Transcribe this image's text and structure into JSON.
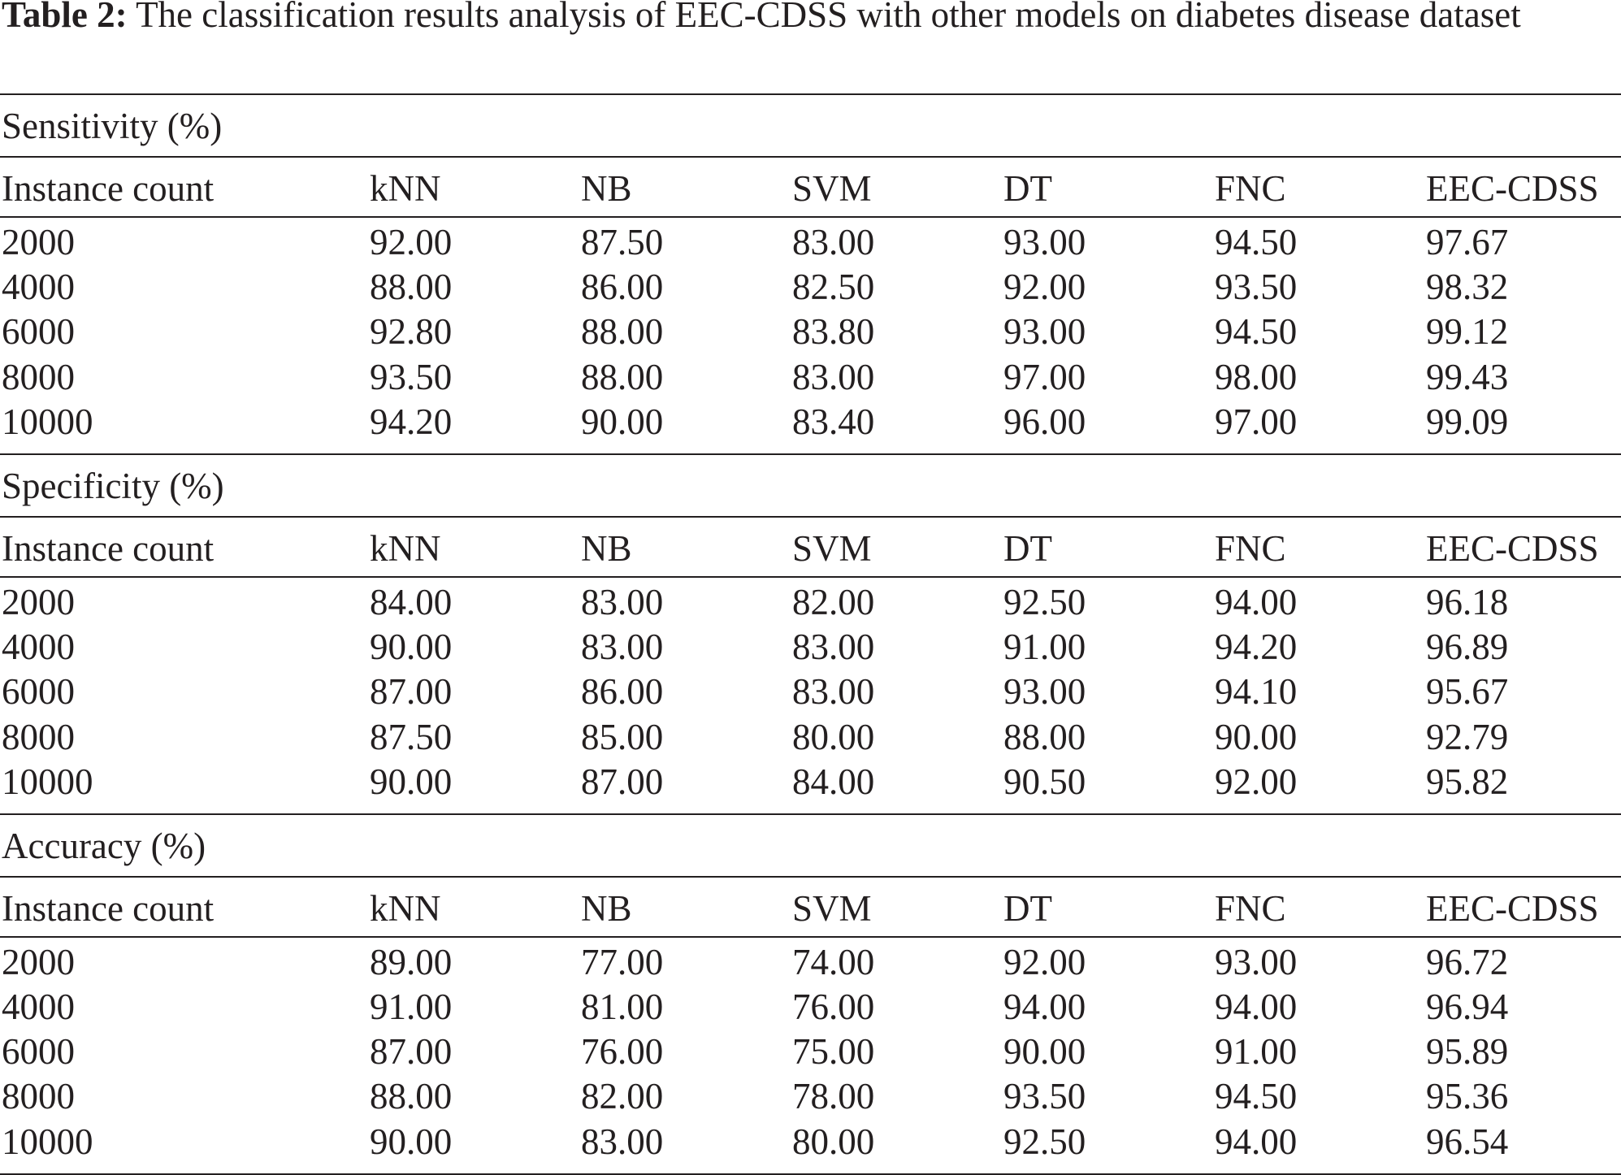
{
  "caption": {
    "label": "Table 2:",
    "text": "The classification results analysis of EEC-CDSS with other models on diabetes disease dataset"
  },
  "columns": [
    "Instance count",
    "kNN",
    "NB",
    "SVM",
    "DT",
    "FNC",
    "EEC-CDSS"
  ],
  "sections": [
    {
      "title": "Sensitivity (%)",
      "rows": [
        [
          "2000",
          "92.00",
          "87.50",
          "83.00",
          "93.00",
          "94.50",
          "97.67"
        ],
        [
          "4000",
          "88.00",
          "86.00",
          "82.50",
          "92.00",
          "93.50",
          "98.32"
        ],
        [
          "6000",
          "92.80",
          "88.00",
          "83.80",
          "93.00",
          "94.50",
          "99.12"
        ],
        [
          "8000",
          "93.50",
          "88.00",
          "83.00",
          "97.00",
          "98.00",
          "99.43"
        ],
        [
          "10000",
          "94.20",
          "90.00",
          "83.40",
          "96.00",
          "97.00",
          "99.09"
        ]
      ]
    },
    {
      "title": "Specificity (%)",
      "rows": [
        [
          "2000",
          "84.00",
          "83.00",
          "82.00",
          "92.50",
          "94.00",
          "96.18"
        ],
        [
          "4000",
          "90.00",
          "83.00",
          "83.00",
          "91.00",
          "94.20",
          "96.89"
        ],
        [
          "6000",
          "87.00",
          "86.00",
          "83.00",
          "93.00",
          "94.10",
          "95.67"
        ],
        [
          "8000",
          "87.50",
          "85.00",
          "80.00",
          "88.00",
          "90.00",
          "92.79"
        ],
        [
          "10000",
          "90.00",
          "87.00",
          "84.00",
          "90.50",
          "92.00",
          "95.82"
        ]
      ]
    },
    {
      "title": "Accuracy (%)",
      "rows": [
        [
          "2000",
          "89.00",
          "77.00",
          "74.00",
          "92.00",
          "93.00",
          "96.72"
        ],
        [
          "4000",
          "91.00",
          "81.00",
          "76.00",
          "94.00",
          "94.00",
          "96.94"
        ],
        [
          "6000",
          "87.00",
          "76.00",
          "75.00",
          "90.00",
          "91.00",
          "95.89"
        ],
        [
          "8000",
          "88.00",
          "82.00",
          "78.00",
          "93.50",
          "94.50",
          "95.36"
        ],
        [
          "10000",
          "90.00",
          "83.00",
          "80.00",
          "92.50",
          "94.00",
          "96.54"
        ]
      ]
    }
  ]
}
